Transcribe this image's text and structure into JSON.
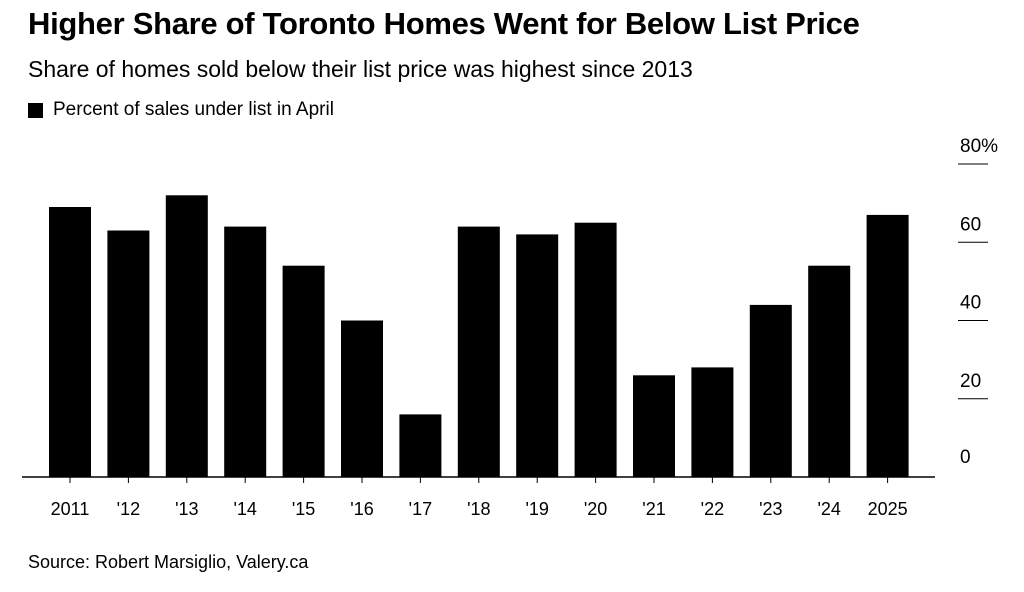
{
  "title": "Higher Share of Toronto Homes Went for Below List Price",
  "subtitle": "Share of homes sold below their list price was highest since 2013",
  "source": "Source: Robert Marsiglio, Valery.ca",
  "colors": {
    "bar": "#000000",
    "axis": "#000000",
    "background": "#ffffff"
  },
  "chart_data": {
    "type": "bar",
    "categories": [
      "2011",
      "'12",
      "'13",
      "'14",
      "'15",
      "'16",
      "'17",
      "'18",
      "'19",
      "'20",
      "'21",
      "'22",
      "'23",
      "'24",
      "2025"
    ],
    "series": [
      {
        "name": "Percent of sales under list in April",
        "values": [
          69,
          63,
          72,
          64,
          54,
          40,
          16,
          64,
          62,
          65,
          26,
          28,
          44,
          54,
          67
        ]
      }
    ],
    "yticks": [
      "0",
      "20",
      "40",
      "60",
      "80%"
    ],
    "ytick_values": [
      0,
      20,
      40,
      60,
      80
    ],
    "ylim": [
      0,
      80
    ],
    "grid": false,
    "legend_position": "top-left"
  }
}
